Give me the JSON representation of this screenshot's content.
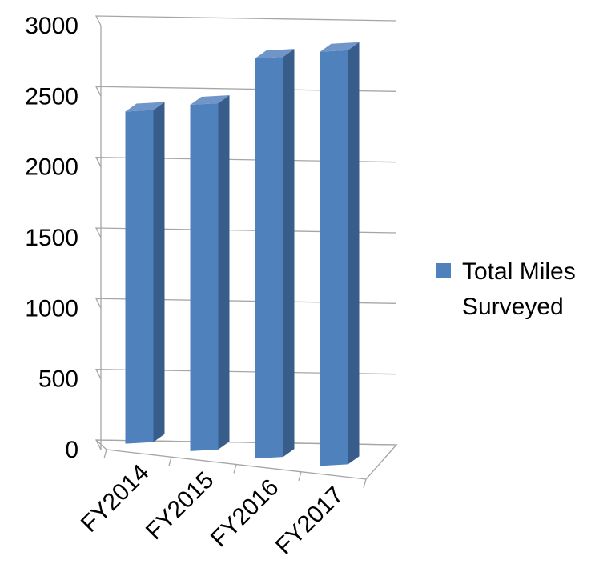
{
  "chart_data": {
    "type": "bar",
    "style": "3d-column",
    "categories": [
      "FY2014",
      "FY2015",
      "FY2016",
      "FY2017"
    ],
    "series": [
      {
        "name": "Total Miles Surveyed",
        "values": [
          2350,
          2450,
          2830,
          2930
        ]
      }
    ],
    "ylim": [
      0,
      3000
    ],
    "yticks": [
      "0",
      "500",
      "1000",
      "1500",
      "2000",
      "2500",
      "3000"
    ],
    "grid": true,
    "legend": {
      "position": "right",
      "lines": [
        "Total Miles",
        "Surveyed"
      ]
    },
    "colors": {
      "bar_front": "#4f81bd",
      "bar_side": "#385d8a",
      "bar_top": "#6f95c9"
    }
  }
}
